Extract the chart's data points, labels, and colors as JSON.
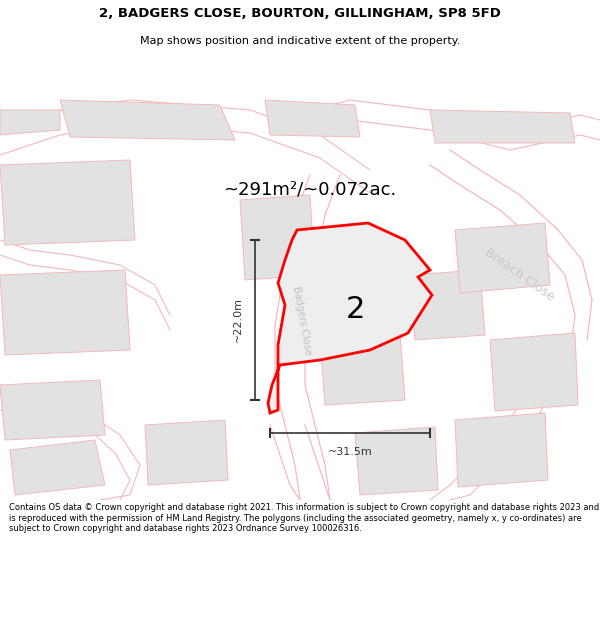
{
  "title_line1": "2, BADGERS CLOSE, BOURTON, GILLINGHAM, SP8 5FD",
  "title_line2": "Map shows position and indicative extent of the property.",
  "area_text": "~291m²/~0.072ac.",
  "label_number": "2",
  "dim_vertical": "~22.0m",
  "dim_horizontal": "~31.5m",
  "road_label": "Badgers Close",
  "road_label2": "Breach Close",
  "footer_text": "Contains OS data © Crown copyright and database right 2021. This information is subject to Crown copyright and database rights 2023 and is reproduced with the permission of HM Land Registry. The polygons (including the associated geometry, namely x, y co-ordinates) are subject to Crown copyright and database rights 2023 Ordnance Survey 100026316.",
  "bg_color": "#ffffff",
  "map_bg": "#ffffff",
  "plot_fill": "#eeeeee",
  "plot_outline": "#ff0000",
  "road_line_color": "#f5b8b8",
  "building_fill": "#e2e2e2",
  "building_outline": "#f5b8b8",
  "dim_color": "#333333",
  "text_color": "#000000",
  "road_text_color": "#c0c0c0",
  "breach_text_color": "#c8c8c8"
}
